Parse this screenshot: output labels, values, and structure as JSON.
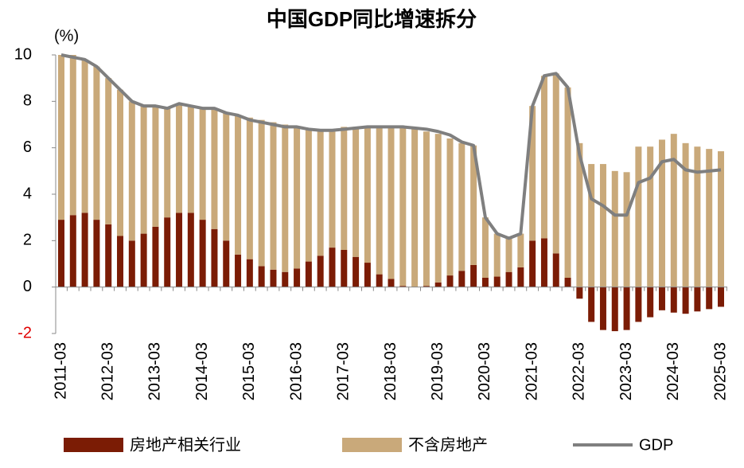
{
  "chart_data": {
    "type": "stacked_bar_line",
    "title": "中国GDP同比增速拆分",
    "y_unit": "(%)",
    "categories": [
      "2011-03",
      null,
      null,
      null,
      "2012-03",
      null,
      null,
      null,
      "2013-03",
      null,
      null,
      null,
      "2014-03",
      null,
      null,
      null,
      "2015-03",
      null,
      null,
      null,
      "2016-03",
      null,
      null,
      null,
      "2017-03",
      null,
      null,
      null,
      "2018-03",
      null,
      null,
      null,
      "2019-03",
      null,
      null,
      null,
      "2020-03",
      null,
      null,
      null,
      "2021-03",
      null,
      null,
      null,
      "2022-03",
      null,
      null,
      null,
      "2023-03",
      null,
      null,
      null,
      "2024-03",
      null,
      null,
      null,
      "2025-03"
    ],
    "series": [
      {
        "name": "房地产相关行业",
        "kind": "bar",
        "color": "#7b1c05",
        "values": [
          2.9,
          3.1,
          3.2,
          2.9,
          2.7,
          2.2,
          2.0,
          2.3,
          2.6,
          3.0,
          3.2,
          3.2,
          2.9,
          2.5,
          2.0,
          1.4,
          1.2,
          0.9,
          0.75,
          0.65,
          0.8,
          1.1,
          1.35,
          1.7,
          1.6,
          1.3,
          1.05,
          0.55,
          0.35,
          0.05,
          0.0,
          0.05,
          0.2,
          0.5,
          0.7,
          0.95,
          0.4,
          0.45,
          0.65,
          0.85,
          2.0,
          2.1,
          1.45,
          0.4,
          -0.5,
          -1.5,
          -1.85,
          -1.9,
          -1.85,
          -1.5,
          -1.3,
          -1.0,
          -1.1,
          -1.15,
          -1.05,
          -0.95,
          -0.85
        ]
      },
      {
        "name": "不含房地产",
        "kind": "bar",
        "color": "#c9a97a",
        "values": [
          7.1,
          6.9,
          6.6,
          6.6,
          6.3,
          6.3,
          6.0,
          5.5,
          5.2,
          4.7,
          4.7,
          4.6,
          4.8,
          5.2,
          5.5,
          6.0,
          6.1,
          6.3,
          6.35,
          6.35,
          6.1,
          5.7,
          5.45,
          5.1,
          5.3,
          5.6,
          5.85,
          6.35,
          6.55,
          6.85,
          6.8,
          6.65,
          6.4,
          5.9,
          5.5,
          5.15,
          2.6,
          1.85,
          1.45,
          1.45,
          5.8,
          7.0,
          7.75,
          8.2,
          6.2,
          5.3,
          5.3,
          5.0,
          4.95,
          6.05,
          6.05,
          6.35,
          6.6,
          6.2,
          6.05,
          5.95,
          5.85
        ]
      },
      {
        "name": "GDP",
        "kind": "line",
        "color": "#7f7f7f",
        "values": [
          10.0,
          9.9,
          9.8,
          9.5,
          9.0,
          8.5,
          8.0,
          7.8,
          7.8,
          7.7,
          7.9,
          7.8,
          7.7,
          7.7,
          7.5,
          7.4,
          7.2,
          7.1,
          7.0,
          6.9,
          6.9,
          6.8,
          6.75,
          6.75,
          6.8,
          6.85,
          6.9,
          6.9,
          6.9,
          6.9,
          6.85,
          6.8,
          6.7,
          6.55,
          6.25,
          6.1,
          3.0,
          2.3,
          2.1,
          2.3,
          7.8,
          9.1,
          9.2,
          8.6,
          5.7,
          3.8,
          3.5,
          3.1,
          3.1,
          4.5,
          4.7,
          5.4,
          5.5,
          5.05,
          4.95,
          5.0,
          5.05
        ]
      }
    ],
    "ylim": [
      -2,
      10
    ],
    "yticks": [
      10,
      8,
      6,
      4,
      2,
      0,
      -2
    ],
    "negative_tick_color": "#e00000",
    "legend": "bottom"
  }
}
